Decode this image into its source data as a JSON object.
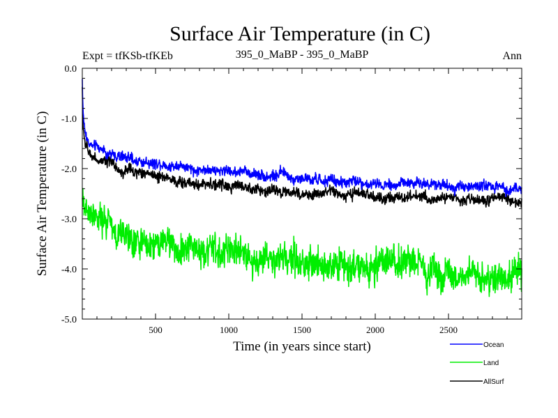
{
  "chart_data": {
    "type": "line",
    "title": "Surface Air Temperature (in C)",
    "subtitle_left": "Expt = tfKSb-tfKEb",
    "subtitle_center": "395_0_MaBP - 395_0_MaBP",
    "subtitle_right": "Ann",
    "xlabel": "Time (in years since start)",
    "ylabel": "Surface Air Temperature (in C)",
    "xlim": [
      0,
      3000
    ],
    "ylim": [
      -5.0,
      0.0
    ],
    "x_ticks": [
      500,
      1000,
      1500,
      2000,
      2500
    ],
    "x_tick_labels": [
      "500",
      "1000",
      "1500",
      "2000",
      "2500"
    ],
    "y_ticks": [
      0.0,
      -1.0,
      -2.0,
      -3.0,
      -4.0,
      -5.0
    ],
    "y_tick_labels": [
      "0.0",
      "-1.0",
      "-2.0",
      "-3.0",
      "-4.0",
      "-5.0"
    ],
    "legend_position": "bottom-right, below plot",
    "series": [
      {
        "name": "Ocean",
        "color": "#0000ff",
        "noise_amplitude": 0.1,
        "x": [
          0,
          5,
          20,
          50,
          100,
          200,
          300,
          500,
          700,
          1000,
          1300,
          1500,
          1800,
          2000,
          2300,
          2500,
          2700,
          3000
        ],
        "values": [
          -0.2,
          -0.9,
          -1.3,
          -1.5,
          -1.6,
          -1.7,
          -1.8,
          -1.9,
          -1.95,
          -2.05,
          -2.15,
          -2.2,
          -2.25,
          -2.3,
          -2.3,
          -2.32,
          -2.35,
          -2.4
        ]
      },
      {
        "name": "Land",
        "color": "#00ee00",
        "noise_amplitude": 0.3,
        "x": [
          0,
          5,
          20,
          50,
          100,
          200,
          300,
          500,
          700,
          1000,
          1300,
          1500,
          1800,
          2000,
          2300,
          2500,
          2700,
          3000
        ],
        "values": [
          -2.7,
          -2.65,
          -2.75,
          -2.8,
          -2.9,
          -3.1,
          -3.3,
          -3.5,
          -3.6,
          -3.7,
          -3.8,
          -3.85,
          -3.95,
          -3.95,
          -4.0,
          -4.05,
          -4.1,
          -4.05
        ]
      },
      {
        "name": "AllSurf",
        "color": "#000000",
        "noise_amplitude": 0.1,
        "x": [
          0,
          5,
          20,
          50,
          100,
          200,
          300,
          500,
          700,
          1000,
          1300,
          1500,
          1800,
          2000,
          2300,
          2500,
          2700,
          3000
        ],
        "values": [
          -0.4,
          -1.2,
          -1.5,
          -1.7,
          -1.8,
          -1.95,
          -2.05,
          -2.15,
          -2.25,
          -2.35,
          -2.45,
          -2.5,
          -2.55,
          -2.55,
          -2.58,
          -2.6,
          -2.6,
          -2.65
        ]
      }
    ]
  }
}
